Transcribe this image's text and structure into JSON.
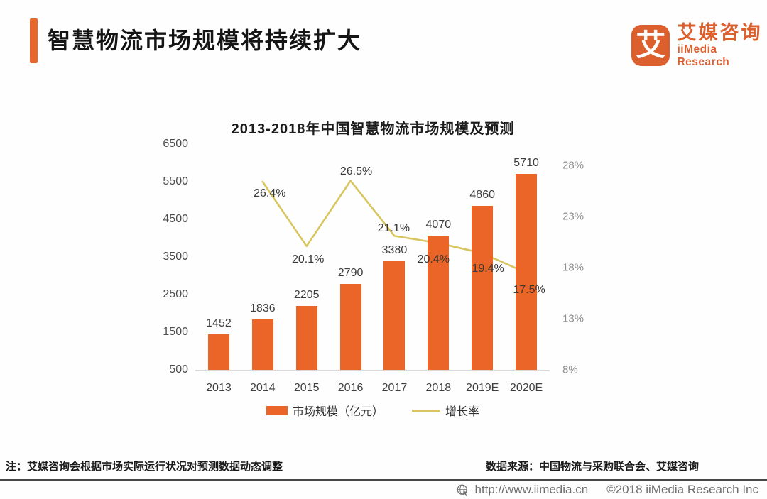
{
  "page": {
    "title": "智慧物流市场规模将持续扩大",
    "note": "注：艾媒咨询会根据市场实际运行状况对预测数据动态调整",
    "source": "数据来源：中国物流与采购联合会、艾媒咨询"
  },
  "brand": {
    "logo_glyph": "艾",
    "name_cn": "艾媒咨询",
    "name_en": "iiMedia Research"
  },
  "footer": {
    "url": "http://www.iimedia.cn",
    "copyright": "©2018  iiMedia Research Inc"
  },
  "colors": {
    "accent_orange": "#E8672C",
    "bar_orange": "#EB6428",
    "logo_orange": "#DC5F2E",
    "line_yellow": "#D9C55F",
    "axis_gray": "#8E8E8E",
    "baseline_gray": "#D9D9D9"
  },
  "chart_data": {
    "type": "bar",
    "subtype": "combo-bar-line",
    "title": "2013-2018年中国智慧物流市场规模及预测",
    "categories": [
      "2013",
      "2014",
      "2015",
      "2016",
      "2017",
      "2018",
      "2019E",
      "2020E"
    ],
    "series": [
      {
        "name": "市场规模（亿元）",
        "type": "bar",
        "color": "#EB6428",
        "values": [
          1452,
          1836,
          2205,
          2790,
          3380,
          4070,
          4860,
          5710
        ]
      },
      {
        "name": "增长率",
        "type": "line",
        "color": "#D9C55F",
        "unit": "%",
        "values": [
          null,
          26.4,
          20.1,
          26.5,
          21.1,
          20.4,
          19.4,
          17.5
        ]
      }
    ],
    "value_axis": {
      "side": "left",
      "min": 500,
      "max": 6500,
      "ticks": [
        500,
        1500,
        2500,
        3500,
        4500,
        5500,
        6500
      ]
    },
    "percent_axis": {
      "side": "right",
      "min": 8,
      "max": 28,
      "ticks": [
        8,
        13,
        18,
        23,
        28
      ],
      "format": "%"
    },
    "legend_position": "bottom",
    "grid": false
  }
}
